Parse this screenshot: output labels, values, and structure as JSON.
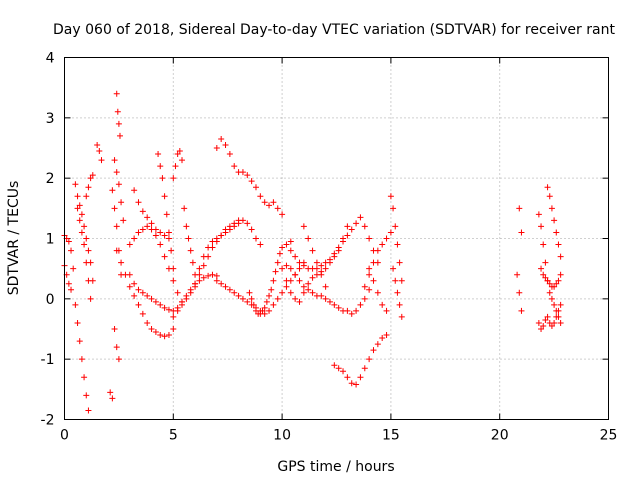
{
  "chart_data": {
    "type": "scatter",
    "title": "Day 060 of 2018, Sidereal Day-to-day VTEC variation (SDTVAR) for receiver rant",
    "xlabel": "GPS time / hours",
    "ylabel": "SDTVAR / TECUs",
    "xlim": [
      0,
      25
    ],
    "ylim": [
      -2,
      4
    ],
    "xticks": [
      "0",
      "5",
      "10",
      "15",
      "20",
      "25"
    ],
    "yticks": [
      "-2",
      "-1",
      "0",
      "1",
      "2",
      "3",
      "4"
    ],
    "grid": true,
    "marker": "+",
    "series": [
      {
        "name": "SDTVAR",
        "color": "#ff0000",
        "segments": [
          {
            "x": [
              0.0,
              0.1,
              0.2,
              0.3,
              0.4
            ],
            "y": [
              1.05,
              1.0,
              0.95,
              0.8,
              0.5
            ]
          },
          {
            "x": [
              0.0,
              0.1,
              0.2,
              0.3
            ],
            "y": [
              0.55,
              0.4,
              0.25,
              0.15
            ]
          },
          {
            "x": [
              0.5,
              0.6,
              0.7,
              0.8,
              0.9,
              1.0,
              1.1,
              1.2,
              1.3
            ],
            "y": [
              1.9,
              1.7,
              1.55,
              1.4,
              1.2,
              1.0,
              0.8,
              0.6,
              0.3
            ]
          },
          {
            "x": [
              0.5,
              0.6,
              0.7,
              0.8,
              0.9,
              1.0,
              1.1
            ],
            "y": [
              -0.1,
              -0.4,
              -0.7,
              -1.0,
              -1.3,
              -1.6,
              -1.85
            ]
          },
          {
            "x": [
              0.6,
              0.7,
              0.8,
              0.9,
              1.0,
              1.1,
              1.2
            ],
            "y": [
              1.5,
              1.3,
              1.1,
              0.9,
              0.6,
              0.3,
              0.0
            ]
          },
          {
            "x": [
              1.0,
              1.1,
              1.2,
              1.3
            ],
            "y": [
              1.7,
              1.85,
              2.0,
              2.05
            ]
          },
          {
            "x": [
              1.5,
              1.6,
              1.7
            ],
            "y": [
              2.55,
              2.45,
              2.3
            ]
          },
          {
            "x": [
              2.2,
              2.3,
              2.4,
              2.5,
              2.6
            ],
            "y": [
              1.8,
              1.5,
              1.2,
              0.8,
              0.4
            ]
          },
          {
            "x": [
              2.4,
              2.45,
              2.5,
              2.55
            ],
            "y": [
              3.4,
              3.1,
              2.9,
              2.7
            ]
          },
          {
            "x": [
              2.3,
              2.4,
              2.5,
              2.6,
              2.7
            ],
            "y": [
              2.3,
              2.1,
              1.9,
              1.6,
              1.3
            ]
          },
          {
            "x": [
              2.3,
              2.4,
              2.5
            ],
            "y": [
              -0.5,
              -0.8,
              -1.0
            ]
          },
          {
            "x": [
              2.1,
              2.2
            ],
            "y": [
              -1.55,
              -1.65
            ]
          },
          {
            "x": [
              2.4,
              2.6,
              2.8,
              3.0,
              3.2,
              3.4,
              3.6,
              3.8,
              4.0,
              4.2,
              4.4,
              4.6,
              4.8,
              5.0
            ],
            "y": [
              0.8,
              0.6,
              0.4,
              0.2,
              0.05,
              -0.1,
              -0.25,
              -0.4,
              -0.5,
              -0.55,
              -0.6,
              -0.62,
              -0.6,
              -0.5
            ]
          },
          {
            "x": [
              3.0,
              3.2,
              3.4,
              3.6,
              3.8,
              4.0,
              4.2,
              4.4,
              4.6,
              4.8,
              5.0,
              5.2,
              5.4,
              5.6,
              5.8,
              6.0,
              6.2,
              6.4,
              6.6,
              6.8,
              7.0
            ],
            "y": [
              0.4,
              0.25,
              0.15,
              0.1,
              0.05,
              0.0,
              -0.05,
              -0.1,
              -0.15,
              -0.18,
              -0.2,
              -0.15,
              -0.05,
              0.05,
              0.15,
              0.25,
              0.3,
              0.35,
              0.38,
              0.4,
              0.38
            ]
          },
          {
            "x": [
              3.2,
              3.4,
              3.6,
              3.8,
              4.0,
              4.2,
              4.4,
              4.6,
              4.8
            ],
            "y": [
              1.8,
              1.6,
              1.45,
              1.35,
              1.25,
              1.15,
              1.1,
              1.05,
              1.0
            ]
          },
          {
            "x": [
              3.0,
              3.2,
              3.4,
              3.6,
              3.8,
              4.0,
              4.2,
              4.4,
              4.6,
              4.8,
              5.0,
              5.2,
              5.4
            ],
            "y": [
              0.9,
              1.0,
              1.1,
              1.15,
              1.2,
              1.15,
              1.05,
              0.9,
              0.7,
              0.5,
              0.3,
              0.1,
              -0.05
            ]
          },
          {
            "x": [
              4.3,
              4.4,
              4.5,
              4.6,
              4.7,
              4.8,
              4.9,
              5.0
            ],
            "y": [
              2.4,
              2.2,
              2.0,
              1.7,
              1.4,
              1.1,
              0.8,
              0.5
            ]
          },
          {
            "x": [
              5.0,
              5.1,
              5.2,
              5.3,
              5.4
            ],
            "y": [
              2.0,
              2.2,
              2.4,
              2.45,
              2.3
            ]
          },
          {
            "x": [
              5.0,
              5.2,
              5.4,
              5.6,
              5.8,
              6.0,
              6.2,
              6.4,
              6.6,
              6.8,
              7.0,
              7.2,
              7.4,
              7.6,
              7.8,
              8.0,
              8.2,
              8.4,
              8.6,
              8.8,
              9.0
            ],
            "y": [
              -0.3,
              -0.2,
              -0.1,
              0.0,
              0.1,
              0.25,
              0.4,
              0.55,
              0.7,
              0.85,
              0.95,
              1.05,
              1.15,
              1.2,
              1.25,
              1.3,
              1.3,
              1.25,
              1.15,
              1.0,
              0.9
            ]
          },
          {
            "x": [
              5.5,
              5.6,
              5.7,
              5.8,
              5.9,
              6.0
            ],
            "y": [
              1.5,
              1.2,
              1.0,
              0.8,
              0.6,
              0.4
            ]
          },
          {
            "x": [
              7.0,
              7.2,
              7.4,
              7.6,
              7.8,
              8.0,
              8.2,
              8.4,
              8.6,
              8.8,
              9.0,
              9.2,
              9.4,
              9.6,
              9.8,
              10.0
            ],
            "y": [
              2.5,
              2.65,
              2.55,
              2.4,
              2.2,
              2.1,
              2.1,
              2.05,
              1.95,
              1.85,
              1.7,
              1.6,
              1.55,
              1.6,
              1.5,
              1.4
            ]
          },
          {
            "x": [
              6.0,
              6.2,
              6.4,
              6.6,
              6.8,
              7.0,
              7.2,
              7.4,
              7.6,
              7.8,
              8.0
            ],
            "y": [
              0.2,
              0.5,
              0.7,
              0.85,
              0.95,
              1.0,
              1.05,
              1.1,
              1.15,
              1.2,
              1.25
            ]
          },
          {
            "x": [
              7.0,
              7.2,
              7.4,
              7.6,
              7.8,
              8.0,
              8.2,
              8.4,
              8.6,
              8.8,
              9.0,
              9.2,
              9.4,
              9.6,
              9.8,
              10.0,
              10.2,
              10.4,
              10.6,
              10.8,
              11.0
            ],
            "y": [
              0.3,
              0.25,
              0.2,
              0.15,
              0.1,
              0.05,
              0.0,
              -0.05,
              -0.1,
              -0.15,
              -0.2,
              -0.25,
              -0.2,
              -0.1,
              0.0,
              0.1,
              0.2,
              0.3,
              0.4,
              0.5,
              0.6
            ]
          },
          {
            "x": [
              8.5,
              8.6,
              8.7,
              8.8,
              8.9,
              9.0,
              9.1,
              9.2,
              9.3,
              9.4,
              9.5,
              9.6,
              9.7,
              9.8,
              9.9,
              10.0,
              10.2,
              10.4
            ],
            "y": [
              0.1,
              0.0,
              -0.1,
              -0.2,
              -0.25,
              -0.25,
              -0.2,
              -0.15,
              -0.05,
              0.05,
              0.15,
              0.3,
              0.45,
              0.6,
              0.75,
              0.85,
              0.9,
              0.95
            ]
          },
          {
            "x": [
              10.2,
              10.4,
              10.6,
              10.8,
              11.0,
              11.2,
              11.4,
              11.6,
              11.8,
              12.0,
              12.2,
              12.4,
              12.6,
              12.8,
              13.0
            ],
            "y": [
              0.3,
              0.1,
              0.0,
              -0.05,
              0.1,
              0.25,
              0.35,
              0.4,
              0.45,
              0.5,
              0.6,
              0.7,
              0.8,
              1.0,
              1.2
            ]
          },
          {
            "x": [
              10.0,
              10.2,
              10.4,
              10.6,
              10.8,
              11.0,
              11.2,
              11.4,
              11.6,
              11.8,
              12.0,
              12.2,
              12.4,
              12.6,
              12.8,
              13.0,
              13.2,
              13.4,
              13.6,
              13.8,
              14.0
            ],
            "y": [
              0.5,
              0.55,
              0.5,
              0.4,
              0.3,
              0.2,
              0.15,
              0.1,
              0.05,
              0.05,
              0.0,
              -0.05,
              -0.1,
              -0.15,
              -0.2,
              -0.2,
              -0.25,
              -0.2,
              -0.1,
              0.0,
              0.15
            ]
          },
          {
            "x": [
              10.4,
              10.6,
              10.8,
              11.0,
              11.2,
              11.4,
              11.6,
              11.8,
              12.0,
              12.2,
              12.4,
              12.6,
              12.8,
              13.0,
              13.2,
              13.4,
              13.6,
              13.8,
              14.0,
              14.2,
              14.4
            ],
            "y": [
              0.8,
              0.7,
              0.6,
              0.55,
              0.5,
              0.5,
              0.5,
              0.55,
              0.6,
              0.65,
              0.75,
              0.85,
              0.95,
              1.05,
              1.15,
              1.25,
              1.35,
              1.2,
              1.0,
              0.8,
              0.6
            ]
          },
          {
            "x": [
              11.0,
              11.2,
              11.4,
              11.6,
              11.8,
              12.0
            ],
            "y": [
              1.2,
              1.0,
              0.8,
              0.6,
              0.4,
              0.2
            ]
          },
          {
            "x": [
              12.4,
              12.6,
              12.8,
              13.0,
              13.2,
              13.4,
              13.6,
              13.8,
              14.0,
              14.2,
              14.4,
              14.6,
              14.8
            ],
            "y": [
              -1.1,
              -1.15,
              -1.2,
              -1.3,
              -1.4,
              -1.42,
              -1.3,
              -1.15,
              -1.0,
              -0.85,
              -0.75,
              -0.65,
              -0.6
            ]
          },
          {
            "x": [
              13.8,
              14.0,
              14.2,
              14.4,
              14.6,
              14.8,
              15.0
            ],
            "y": [
              0.2,
              0.4,
              0.6,
              0.8,
              0.9,
              1.0,
              1.1
            ]
          },
          {
            "x": [
              14.0,
              14.2,
              14.4,
              14.6,
              14.8
            ],
            "y": [
              0.5,
              0.3,
              0.1,
              -0.1,
              -0.2
            ]
          },
          {
            "x": [
              15.0,
              15.1,
              15.2,
              15.3,
              15.4,
              15.5
            ],
            "y": [
              1.7,
              1.5,
              1.2,
              0.9,
              0.6,
              0.3
            ]
          },
          {
            "x": [
              15.1,
              15.2,
              15.3,
              15.4,
              15.5
            ],
            "y": [
              0.5,
              0.3,
              0.1,
              -0.1,
              -0.3
            ]
          },
          {
            "x": [
              20.9,
              21.0
            ],
            "y": [
              1.5,
              1.1
            ]
          },
          {
            "x": [
              20.8,
              20.9,
              21.0
            ],
            "y": [
              0.4,
              0.1,
              -0.2
            ]
          },
          {
            "x": [
              21.8,
              21.9,
              22.0,
              22.1,
              22.2,
              22.3,
              22.4,
              22.5,
              22.6,
              22.7,
              22.8
            ],
            "y": [
              1.4,
              1.2,
              0.9,
              0.6,
              0.3,
              0.1,
              0.0,
              -0.1,
              -0.2,
              -0.3,
              -0.4
            ]
          },
          {
            "x": [
              22.2,
              22.3,
              22.4,
              22.5,
              22.6,
              22.7,
              22.8
            ],
            "y": [
              1.85,
              1.7,
              1.5,
              1.3,
              1.1,
              0.9,
              0.7
            ]
          },
          {
            "x": [
              21.8,
              21.9,
              22.0,
              22.1,
              22.2,
              22.3,
              22.4,
              22.5,
              22.6,
              22.7,
              22.8
            ],
            "y": [
              -0.4,
              -0.5,
              -0.45,
              -0.35,
              -0.3,
              -0.4,
              -0.45,
              -0.4,
              -0.3,
              -0.2,
              -0.1
            ]
          },
          {
            "x": [
              21.9,
              22.0,
              22.1,
              22.2,
              22.3,
              22.4,
              22.5,
              22.6,
              22.7,
              22.8
            ],
            "y": [
              0.5,
              0.4,
              0.35,
              0.3,
              0.25,
              0.2,
              0.2,
              0.25,
              0.3,
              0.4
            ]
          }
        ]
      }
    ]
  }
}
